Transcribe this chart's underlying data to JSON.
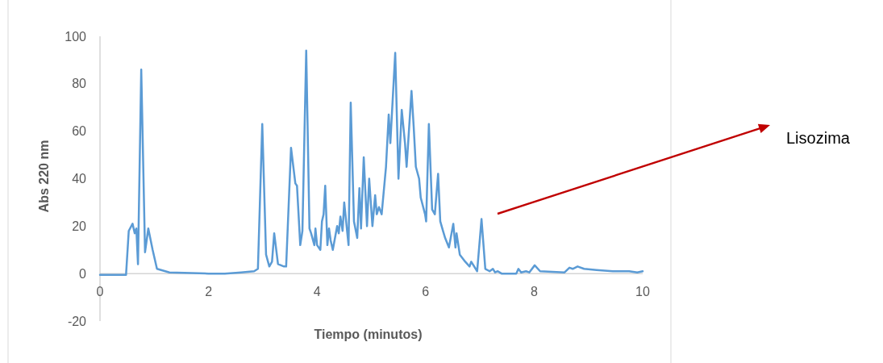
{
  "chart_data": {
    "type": "line",
    "xlabel": "Tiempo (minutos)",
    "ylabel": "Abs 220 nm",
    "xlim": [
      0,
      10
    ],
    "ylim": [
      -20,
      100
    ],
    "xticks": [
      0,
      2,
      4,
      6,
      8,
      10
    ],
    "yticks": [
      -20,
      0,
      20,
      40,
      60,
      80,
      100
    ],
    "grid": false,
    "marker": "none",
    "line_style": "solid",
    "annotations": [
      "Lisozima"
    ],
    "series": [
      {
        "color": "#5b9bd5",
        "x": [
          0,
          0.48,
          0.53,
          0.6,
          0.64,
          0.67,
          0.7,
          0.76,
          0.83,
          0.89,
          0.97,
          1.05,
          1.28,
          2.0,
          2.3,
          2.6,
          2.84,
          2.91,
          2.99,
          3.06,
          3.12,
          3.17,
          3.21,
          3.28,
          3.39,
          3.43,
          3.52,
          3.6,
          3.63,
          3.69,
          3.73,
          3.8,
          3.86,
          3.89,
          3.95,
          3.97,
          4.0,
          4.06,
          4.09,
          4.12,
          4.15,
          4.19,
          4.22,
          4.25,
          4.29,
          4.37,
          4.4,
          4.43,
          4.47,
          4.5,
          4.58,
          4.62,
          4.68,
          4.74,
          4.78,
          4.81,
          4.86,
          4.92,
          4.96,
          5.02,
          5.07,
          5.1,
          5.14,
          5.19,
          5.27,
          5.32,
          5.35,
          5.44,
          5.5,
          5.56,
          5.62,
          5.65,
          5.74,
          5.78,
          5.82,
          5.88,
          5.91,
          5.99,
          6.01,
          6.06,
          6.12,
          6.17,
          6.23,
          6.27,
          6.32,
          6.36,
          6.43,
          6.51,
          6.55,
          6.57,
          6.63,
          6.73,
          6.81,
          6.84,
          6.95,
          7.03,
          7.1,
          7.18,
          7.24,
          7.28,
          7.33,
          7.4,
          7.67,
          7.71,
          7.76,
          7.85,
          7.91,
          8.01,
          8.11,
          8.56,
          8.65,
          8.71,
          8.8,
          8.92,
          9.15,
          9.45,
          9.75,
          9.9,
          10
        ],
        "values": [
          -0.5,
          -0.5,
          18,
          21,
          17,
          19,
          4,
          86,
          9,
          19,
          10,
          2,
          0.5,
          0,
          0,
          0.5,
          1,
          2,
          63,
          8,
          3,
          5,
          17,
          4,
          3,
          3,
          53,
          38,
          37,
          12,
          18,
          94,
          19,
          17,
          12,
          19,
          12,
          10,
          22,
          25,
          37,
          12,
          19,
          14,
          10,
          20,
          17,
          24,
          18,
          30,
          12,
          72,
          22,
          15,
          36,
          19,
          49,
          20,
          40,
          20,
          33,
          25,
          28,
          25,
          45,
          67,
          55,
          93,
          40,
          69,
          55,
          45,
          77,
          62,
          45,
          40,
          32,
          25,
          22,
          63,
          27,
          25,
          42,
          22,
          18,
          15,
          11,
          21,
          11,
          17,
          8,
          5,
          3,
          5,
          1,
          23,
          2,
          1,
          2,
          0.5,
          1,
          0,
          0,
          2,
          0.5,
          1,
          0.5,
          3.5,
          1,
          0.5,
          2.5,
          2,
          3,
          2,
          1.5,
          1,
          1,
          0.5,
          1
        ]
      }
    ]
  }
}
